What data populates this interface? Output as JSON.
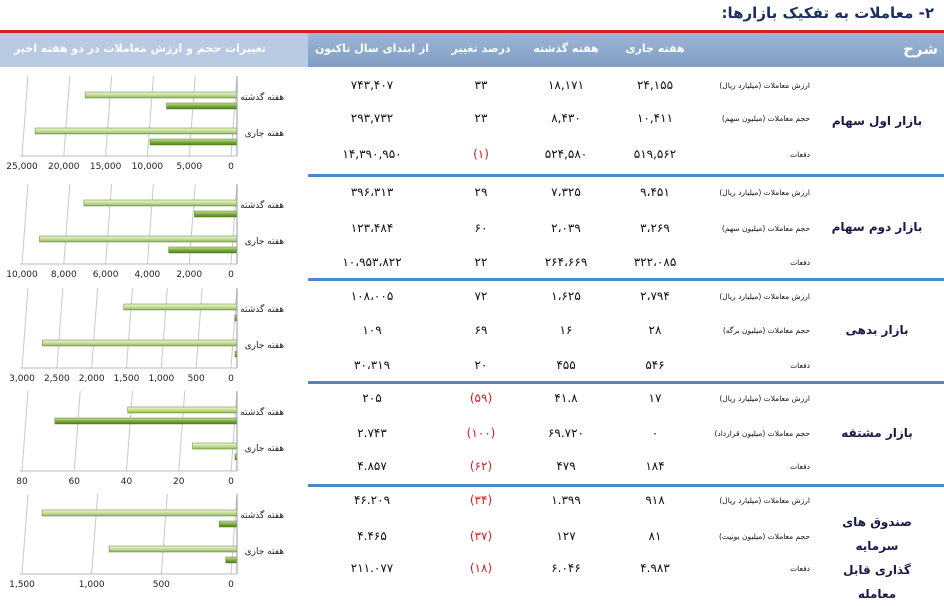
{
  "title": "۲- معاملات به تفکیک بازارها:",
  "header": {
    "sharh": "شرح",
    "current_week": "هفته جاری",
    "last_week": "هفته گذشته",
    "change_pct": "درصد تغییر",
    "ytd": "از ابتدای سال تاکنون",
    "chart_title": "تغییرات حجم و ارزش معاملات در دو هفته اخیر"
  },
  "markets": [
    {
      "name": "بازار اول سهام",
      "rows": [
        {
          "label": "ارزش معاملات (میلیارد ریال)",
          "current": "۲۴,۱۵۵",
          "previous": "۱۸,۱۷۱",
          "change": "۳۳",
          "change_negative": false,
          "ytd": "۷۴۳,۴۰۷"
        },
        {
          "label": "حجم معاملات (میلیون سهم)",
          "current": "۱۰,۴۱۱",
          "previous": "۸,۴۳۰",
          "change": "۲۳",
          "change_negative": false,
          "ytd": "۲۹۳,۷۳۲"
        },
        {
          "label": "دفعات",
          "current": "۵۱۹,۵۶۲",
          "previous": "۵۲۴,۵۸۰",
          "change": "(۱)",
          "change_negative": true,
          "ytd": "۱۴,۳۹۰,۹۵۰"
        }
      ]
    },
    {
      "name": "بازار دوم سهام",
      "rows": [
        {
          "label": "ارزش معاملات (میلیارد ریال)",
          "current": "۹،۴۵۱",
          "previous": "۷،۳۲۵",
          "change": "۲۹",
          "change_negative": false,
          "ytd": "۳۹۶،۳۱۳"
        },
        {
          "label": "حجم معاملات (میلیون سهم)",
          "current": "۳،۲۶۹",
          "previous": "۲،۰۳۹",
          "change": "۶۰",
          "change_negative": false,
          "ytd": "۱۲۳،۴۸۴"
        },
        {
          "label": "دفعات",
          "current": "۳۲۲،۰۸۵",
          "previous": "۲۶۴،۶۶۹",
          "change": "۲۲",
          "change_negative": false,
          "ytd": "۱۰،۹۵۳،۸۲۲"
        }
      ]
    },
    {
      "name": "بازار بدهی",
      "rows": [
        {
          "label": "ارزش معاملات (میلیارد ریال)",
          "current": "۲،۷۹۴",
          "previous": "۱،۶۲۵",
          "change": "۷۲",
          "change_negative": false,
          "ytd": "۱۰۸،۰۰۵"
        },
        {
          "label": "حجم معاملات (میلیون برگه)",
          "current": "۲۸",
          "previous": "۱۶",
          "change": "۶۹",
          "change_negative": false,
          "ytd": "۱۰۹"
        },
        {
          "label": "دفعات",
          "current": "۵۴۶",
          "previous": "۴۵۵",
          "change": "۲۰",
          "change_negative": false,
          "ytd": "۳۰،۳۱۹"
        }
      ]
    },
    {
      "name": "بازار مشتقه",
      "rows": [
        {
          "label": "ارزش معاملات (میلیارد ریال)",
          "current": "۱۷",
          "previous": "۴۱.۸",
          "change": "(۵۹)",
          "change_negative": true,
          "ytd": "۲۰۵"
        },
        {
          "label": "حجم معاملات (میلیون قرارداد)",
          "current": "۰",
          "previous": "۶۹.۷۲۰",
          "change": "(۱۰۰)",
          "change_negative": true,
          "ytd": "۲.۷۴۳"
        },
        {
          "label": "دفعات",
          "current": "۱۸۴",
          "previous": "۴۷۹",
          "change": "(۶۲)",
          "change_negative": true,
          "ytd": "۴.۸۵۷"
        }
      ]
    },
    {
      "name": "صندوق های سرمایه گذاری قابل معامله",
      "name_line1": "صندوق های سرمایه",
      "name_line2": "گذاری قابل معامله",
      "rows": [
        {
          "label": "ارزش معاملات (میلیارد ریال)",
          "current": "۹۱۸",
          "previous": "۱.۳۹۹",
          "change": "(۳۴)",
          "change_negative": true,
          "ytd": "۴۶.۲۰۹"
        },
        {
          "label": "حجم معاملات (میلیون یونیت)",
          "current": "۸۱",
          "previous": "۱۲۷",
          "change": "(۳۷)",
          "change_negative": true,
          "ytd": "۴.۴۶۵"
        },
        {
          "label": "دفعات",
          "current": "۴.۹۸۳",
          "previous": "۶.۰۴۶",
          "change": "(۱۸)",
          "change_negative": true,
          "ytd": "۲۱۱.۰۷۷"
        }
      ]
    }
  ],
  "chart_data": [
    {
      "type": "bar",
      "orientation": "horizontal",
      "categories": [
        "هفته گذشته",
        "هفته جاری"
      ],
      "series": [
        {
          "name": "ارزش معاملات",
          "values": [
            18171,
            24155
          ]
        },
        {
          "name": "حجم معاملات",
          "values": [
            8430,
            10411
          ]
        }
      ],
      "xlim": [
        0,
        25000
      ],
      "ticks": [
        "25,000",
        "20,000",
        "15,000",
        "10,000",
        "5,000",
        "0"
      ],
      "tick_values": [
        25000,
        20000,
        15000,
        10000,
        5000,
        0
      ]
    },
    {
      "type": "bar",
      "orientation": "horizontal",
      "categories": [
        "هفته گذشته",
        "هفته جاری"
      ],
      "series": [
        {
          "name": "ارزش معاملات",
          "values": [
            7325,
            9451
          ]
        },
        {
          "name": "حجم معاملات",
          "values": [
            2039,
            3269
          ]
        }
      ],
      "xlim": [
        0,
        10000
      ],
      "ticks": [
        "10,000",
        "8,000",
        "6,000",
        "4,000",
        "2,000",
        "0"
      ],
      "tick_values": [
        10000,
        8000,
        6000,
        4000,
        2000,
        0
      ]
    },
    {
      "type": "bar",
      "orientation": "horizontal",
      "categories": [
        "هفته گذشته",
        "هفته جاری"
      ],
      "series": [
        {
          "name": "ارزش معاملات",
          "values": [
            1625,
            2794
          ]
        },
        {
          "name": "حجم معاملات",
          "values": [
            16,
            28
          ]
        }
      ],
      "xlim": [
        0,
        3000
      ],
      "ticks": [
        "3,000",
        "2,500",
        "2,000",
        "1,500",
        "1,000",
        "500",
        "0"
      ],
      "tick_values": [
        3000,
        2500,
        2000,
        1500,
        1000,
        500,
        0
      ]
    },
    {
      "type": "bar",
      "orientation": "horizontal",
      "categories": [
        "هفته گذشته",
        "هفته جاری"
      ],
      "series": [
        {
          "name": "ارزش معاملات",
          "values": [
            41.8,
            17
          ]
        },
        {
          "name": "حجم معاملات",
          "values": [
            69.72,
            0
          ]
        }
      ],
      "xlim": [
        0,
        80
      ],
      "ticks": [
        "80",
        "60",
        "40",
        "20",
        "0"
      ],
      "tick_values": [
        80,
        60,
        40,
        20,
        0
      ]
    },
    {
      "type": "bar",
      "orientation": "horizontal",
      "categories": [
        "هفته گذشته",
        "هفته جاری"
      ],
      "series": [
        {
          "name": "ارزش معاملات",
          "values": [
            1399,
            918
          ]
        },
        {
          "name": "حجم معاملات",
          "values": [
            127,
            81
          ]
        }
      ],
      "xlim": [
        0,
        1500
      ],
      "ticks": [
        "1,500",
        "1,000",
        "500",
        "0"
      ],
      "tick_values": [
        1500,
        1000,
        500,
        0
      ]
    }
  ]
}
